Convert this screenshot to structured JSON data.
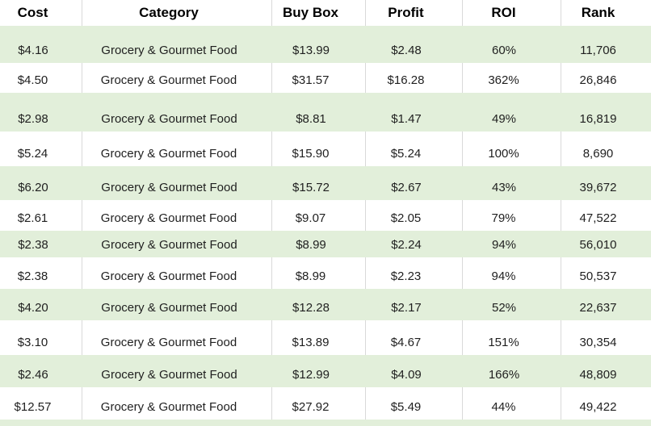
{
  "table": {
    "columns": [
      "Cost",
      "Category",
      "Buy Box",
      "Profit",
      "ROI",
      "Rank"
    ],
    "rows": [
      [
        "$4.16",
        "Grocery & Gourmet Food",
        "$13.99",
        "$2.48",
        "60%",
        "11,706"
      ],
      [
        "$4.50",
        "Grocery & Gourmet Food",
        "$31.57",
        "$16.28",
        "362%",
        "26,846"
      ],
      [
        "$2.98",
        "Grocery & Gourmet Food",
        "$8.81",
        "$1.47",
        "49%",
        "16,819"
      ],
      [
        "$5.24",
        "Grocery & Gourmet Food",
        "$15.90",
        "$5.24",
        "100%",
        "8,690"
      ],
      [
        "$6.20",
        "Grocery & Gourmet Food",
        "$15.72",
        "$2.67",
        "43%",
        "39,672"
      ],
      [
        "$2.61",
        "Grocery & Gourmet Food",
        "$9.07",
        "$2.05",
        "79%",
        "47,522"
      ],
      [
        "$2.38",
        "Grocery & Gourmet Food",
        "$8.99",
        "$2.24",
        "94%",
        "56,010"
      ],
      [
        "$2.38",
        "Grocery & Gourmet Food",
        "$8.99",
        "$2.23",
        "94%",
        "50,537"
      ],
      [
        "$4.20",
        "Grocery & Gourmet Food",
        "$12.28",
        "$2.17",
        "52%",
        "22,637"
      ],
      [
        "$3.10",
        "Grocery & Gourmet Food",
        "$13.89",
        "$4.67",
        "151%",
        "30,354"
      ],
      [
        "$2.46",
        "Grocery & Gourmet Food",
        "$12.99",
        "$4.09",
        "166%",
        "48,809"
      ],
      [
        "$12.57",
        "Grocery & Gourmet Food",
        "$27.92",
        "$5.49",
        "44%",
        "49,422"
      ]
    ]
  },
  "colors": {
    "stripe_green": "#e2efda",
    "grid_line": "#d9d9d9",
    "header_text": "#000000",
    "cell_text": "#1f1f1f"
  }
}
